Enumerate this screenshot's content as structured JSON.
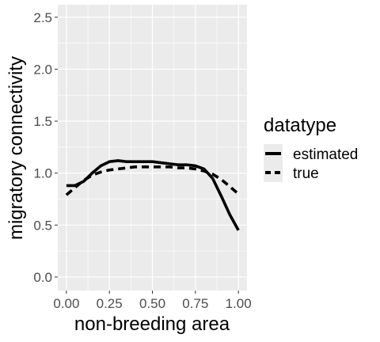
{
  "chart_data": {
    "type": "line",
    "title": "",
    "xlabel": "non-breeding area",
    "ylabel": "migratory connectivity",
    "xlim": [
      -0.05,
      1.05
    ],
    "ylim": [
      -0.13,
      2.62
    ],
    "xticks": [
      0,
      0.25,
      0.5,
      0.75,
      1.0
    ],
    "xtick_labels": [
      "0.00",
      "0.25",
      "0.50",
      "0.75",
      "1.00"
    ],
    "yticks": [
      0,
      0.5,
      1.0,
      1.5,
      2.0,
      2.5
    ],
    "ytick_labels": [
      "0.0",
      "0.5",
      "1.0",
      "1.5",
      "2.0",
      "2.5"
    ],
    "grid": true,
    "legend": {
      "title": "datatype",
      "placement": "right"
    },
    "series": [
      {
        "name": "estimated",
        "linetype": "solid",
        "color": "#000000",
        "x": [
          0.0,
          0.05,
          0.1,
          0.15,
          0.2,
          0.25,
          0.3,
          0.35,
          0.4,
          0.45,
          0.5,
          0.55,
          0.6,
          0.65,
          0.7,
          0.75,
          0.8,
          0.85,
          0.9,
          0.95,
          1.0
        ],
        "y": [
          0.88,
          0.88,
          0.92,
          1.0,
          1.07,
          1.11,
          1.12,
          1.11,
          1.11,
          1.11,
          1.11,
          1.1,
          1.09,
          1.08,
          1.08,
          1.07,
          1.04,
          0.95,
          0.78,
          0.6,
          0.45
        ]
      },
      {
        "name": "true",
        "linetype": "dashed",
        "color": "#000000",
        "x": [
          0.0,
          0.05,
          0.1,
          0.15,
          0.2,
          0.25,
          0.3,
          0.35,
          0.4,
          0.45,
          0.5,
          0.55,
          0.6,
          0.65,
          0.7,
          0.75,
          0.8,
          0.85,
          0.9,
          0.95,
          1.0
        ],
        "y": [
          0.79,
          0.86,
          0.93,
          0.98,
          1.01,
          1.03,
          1.04,
          1.05,
          1.06,
          1.06,
          1.06,
          1.06,
          1.06,
          1.05,
          1.05,
          1.04,
          1.02,
          0.99,
          0.94,
          0.87,
          0.8
        ]
      }
    ]
  },
  "colors": {
    "panel_background": "#ebebeb",
    "grid_major": "#ffffff",
    "tick_text": "#4d4d4d"
  }
}
